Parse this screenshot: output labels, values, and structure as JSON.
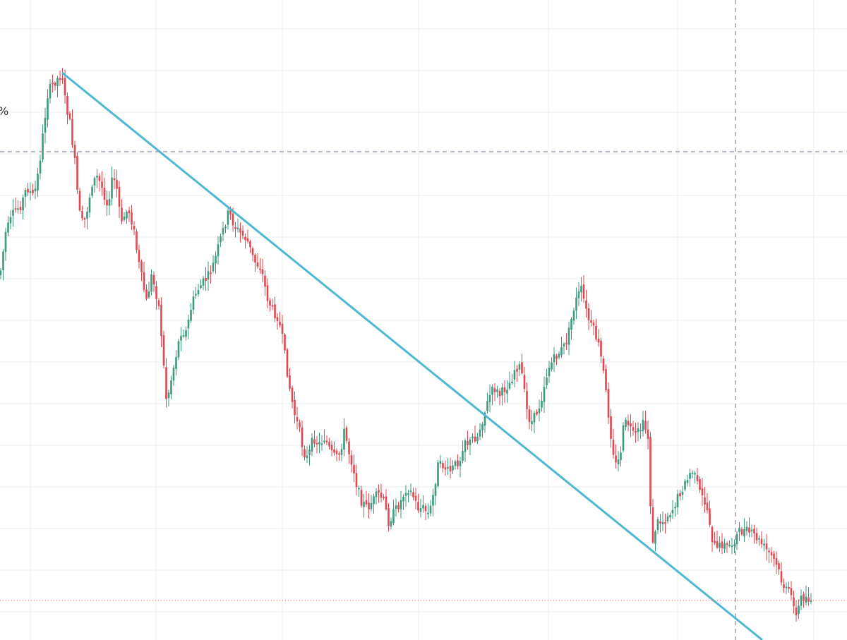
{
  "chart_data": {
    "type": "candlestick",
    "title": "",
    "xlabel": "",
    "ylabel": "",
    "grid": true,
    "ylim": [
      0,
      907
    ],
    "colors": {
      "up": "#26a69a",
      "up_body": "#3d9a7e",
      "down": "#ef5350",
      "down_body": "#e0474f",
      "trendline": "#4db8d1",
      "crosshair": "#8a8a9a",
      "price_line": "#e85a5a",
      "grid": "#eeeeee",
      "background": "#ffffff"
    },
    "anchors": [
      [
        0,
        390
      ],
      [
        8,
        330
      ],
      [
        20,
        300
      ],
      [
        30,
        290
      ],
      [
        38,
        265
      ],
      [
        48,
        280
      ],
      [
        55,
        240
      ],
      [
        62,
        180
      ],
      [
        68,
        130
      ],
      [
        78,
        115
      ],
      [
        88,
        105
      ],
      [
        92,
        140
      ],
      [
        100,
        180
      ],
      [
        106,
        230
      ],
      [
        112,
        300
      ],
      [
        118,
        320
      ],
      [
        125,
        290
      ],
      [
        130,
        260
      ],
      [
        138,
        250
      ],
      [
        146,
        270
      ],
      [
        152,
        290
      ],
      [
        160,
        250
      ],
      [
        166,
        270
      ],
      [
        172,
        320
      ],
      [
        178,
        300
      ],
      [
        184,
        300
      ],
      [
        190,
        330
      ],
      [
        196,
        370
      ],
      [
        202,
        400
      ],
      [
        208,
        430
      ],
      [
        214,
        390
      ],
      [
        220,
        410
      ],
      [
        226,
        440
      ],
      [
        232,
        520
      ],
      [
        236,
        570
      ],
      [
        242,
        540
      ],
      [
        248,
        510
      ],
      [
        256,
        470
      ],
      [
        264,
        470
      ],
      [
        272,
        430
      ],
      [
        280,
        410
      ],
      [
        288,
        400
      ],
      [
        296,
        390
      ],
      [
        304,
        370
      ],
      [
        312,
        340
      ],
      [
        318,
        320
      ],
      [
        324,
        300
      ],
      [
        332,
        320
      ],
      [
        340,
        330
      ],
      [
        350,
        340
      ],
      [
        360,
        370
      ],
      [
        370,
        380
      ],
      [
        378,
        420
      ],
      [
        386,
        440
      ],
      [
        394,
        450
      ],
      [
        400,
        480
      ],
      [
        406,
        520
      ],
      [
        412,
        560
      ],
      [
        418,
        590
      ],
      [
        424,
        610
      ],
      [
        430,
        640
      ],
      [
        436,
        650
      ],
      [
        444,
        620
      ],
      [
        452,
        630
      ],
      [
        460,
        620
      ],
      [
        468,
        640
      ],
      [
        476,
        650
      ],
      [
        482,
        640
      ],
      [
        488,
        610
      ],
      [
        494,
        640
      ],
      [
        500,
        660
      ],
      [
        506,
        690
      ],
      [
        512,
        710
      ],
      [
        520,
        720
      ],
      [
        528,
        710
      ],
      [
        536,
        700
      ],
      [
        544,
        710
      ],
      [
        550,
        740
      ],
      [
        556,
        730
      ],
      [
        562,
        720
      ],
      [
        568,
        710
      ],
      [
        576,
        690
      ],
      [
        584,
        700
      ],
      [
        592,
        720
      ],
      [
        600,
        720
      ],
      [
        608,
        730
      ],
      [
        614,
        700
      ],
      [
        620,
        660
      ],
      [
        628,
        660
      ],
      [
        636,
        670
      ],
      [
        644,
        660
      ],
      [
        652,
        650
      ],
      [
        658,
        620
      ],
      [
        664,
        630
      ],
      [
        670,
        620
      ],
      [
        676,
        620
      ],
      [
        682,
        600
      ],
      [
        688,
        580
      ],
      [
        694,
        560
      ],
      [
        700,
        550
      ],
      [
        708,
        560
      ],
      [
        716,
        550
      ],
      [
        724,
        540
      ],
      [
        730,
        520
      ],
      [
        738,
        520
      ],
      [
        746,
        580
      ],
      [
        752,
        600
      ],
      [
        758,
        590
      ],
      [
        766,
        570
      ],
      [
        772,
        540
      ],
      [
        778,
        520
      ],
      [
        784,
        510
      ],
      [
        792,
        500
      ],
      [
        800,
        490
      ],
      [
        806,
        470
      ],
      [
        812,
        440
      ],
      [
        818,
        420
      ],
      [
        824,
        410
      ],
      [
        830,
        440
      ],
      [
        836,
        460
      ],
      [
        842,
        470
      ],
      [
        848,
        490
      ],
      [
        854,
        520
      ],
      [
        860,
        570
      ],
      [
        866,
        620
      ],
      [
        872,
        660
      ],
      [
        878,
        650
      ],
      [
        884,
        600
      ],
      [
        890,
        600
      ],
      [
        898,
        620
      ],
      [
        906,
        610
      ],
      [
        912,
        600
      ],
      [
        918,
        620
      ],
      [
        924,
        780
      ],
      [
        930,
        740
      ],
      [
        938,
        740
      ],
      [
        946,
        730
      ],
      [
        954,
        720
      ],
      [
        962,
        700
      ],
      [
        968,
        690
      ],
      [
        974,
        680
      ],
      [
        980,
        665
      ],
      [
        986,
        680
      ],
      [
        992,
        700
      ],
      [
        998,
        710
      ],
      [
        1004,
        730
      ],
      [
        1010,
        770
      ],
      [
        1016,
        780
      ],
      [
        1022,
        770
      ],
      [
        1030,
        775
      ],
      [
        1038,
        770
      ],
      [
        1046,
        755
      ],
      [
        1054,
        752
      ],
      [
        1062,
        755
      ],
      [
        1070,
        760
      ],
      [
        1078,
        770
      ],
      [
        1086,
        780
      ],
      [
        1094,
        790
      ],
      [
        1100,
        800
      ],
      [
        1106,
        820
      ],
      [
        1112,
        835
      ],
      [
        1118,
        840
      ],
      [
        1124,
        850
      ],
      [
        1128,
        875
      ],
      [
        1134,
        848
      ],
      [
        1140,
        845
      ],
      [
        1146,
        849
      ],
      [
        1150,
        851
      ]
    ]
  },
  "annotations": {
    "trendline": {
      "from": [
        88,
        103
      ],
      "to": [
        1080,
        907
      ]
    },
    "crosshair": {
      "x": 1042,
      "y": 215
    },
    "price_line": {
      "y": 851
    },
    "corner_glyph": "%"
  }
}
